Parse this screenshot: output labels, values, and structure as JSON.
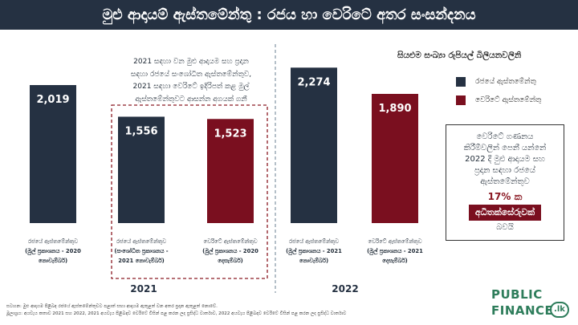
{
  "title": "මුළු ආදායම් ඇස්තමේන්තු : රජය හා වෙරිටේ අතර සංසන්දනය",
  "chart_data": {
    "type": "bar",
    "unit_label": "සියළුම සංඛ්‍යා රුපියල් බිලියනවලිනි",
    "ylim": [
      0,
      2700
    ],
    "legend": [
      {
        "label": "රජයේ ඇස්තමේන්තු",
        "color": "#253142"
      },
      {
        "label": "වෙරිටේ ඇස්තමේන්තු",
        "color": "#7a0f1f"
      }
    ],
    "groups": [
      {
        "year": "2021",
        "bars": [
          {
            "value": 2019,
            "display": "2,019",
            "color": "#253142",
            "caption": [
              "රජයේ ඇස්තමේන්තුව",
              "(මුල් ප්‍රකාශනය - 2020",
              "නොවැම්බර්)"
            ]
          },
          {
            "value": 1556,
            "display": "1,556",
            "color": "#253142",
            "caption": [
              "රජයේ ඇස්තමේන්තුව",
              "(සංශෝධිත ප්‍රකාශනය -",
              "2021 නොවැම්බර්)"
            ]
          },
          {
            "value": 1523,
            "display": "1,523",
            "color": "#7a0f1f",
            "caption": [
              "වෙරිටේ ඇස්තමේන්තුව",
              "(මුල් ප්‍රකාශනය - 2020",
              "දෙසැම්බර්)"
            ]
          }
        ]
      },
      {
        "year": "2022",
        "bars": [
          {
            "value": 2274,
            "display": "2,274",
            "color": "#253142",
            "caption": [
              "රජයේ ඇස්තමේන්තුව",
              "(මුල් ප්‍රකාශනය - 2021",
              "නොවැම්බර්)"
            ]
          },
          {
            "value": 1890,
            "display": "1,890",
            "color": "#7a0f1f",
            "caption": [
              "වෙරිටේ ඇස්තමේන්තුව",
              "(මුල් ප්‍රකාශනය - 2021",
              "දෙසැම්බර්)"
            ]
          }
        ]
      }
    ],
    "annotation": [
      "2021 සඳහා වන මුළු ආදායම සහ ප්‍රදාන",
      "සඳහා රජයේ සංශෝධිත ඇස්තමේන්තුව,",
      "2021 සඳහා වෙරිටේ ඉදිරිපත් කළ මුල්",
      "ඇස්තමේන්තුවට ආසන්න අගයක් ගනී"
    ]
  },
  "callout": {
    "lines": [
      "වෙරිටේ ගණනය",
      "කිරීම්වලින් පෙනී යන්නේ",
      "2022 දී මුළු ආදායම සහ",
      "ප්‍රදාන සඳහා රජයේ",
      "ඇස්තමේන්තුව"
    ],
    "percent": "17% ක",
    "increase": "අධිතක්සේරුවක්",
    "tail": "බවයි"
  },
  "footer": {
    "note": "සටහන: මුළු ආදායම පිළිබඳ රජයේ ඇස්තමේන්තුවට පළාත් සභා ආදායම ඇතුළත් වන අතර ප්‍රදාන ඇතුළත් නොවේ.",
    "source": "මූලාශ්‍රය: අයවැය කතාව 2021 සහ 2022, 2021 අයවැය පිළිබඳව වෙරිටේ විසින් පළ කරන ලද ප්‍රසිද්ධ වාර්තාව, 2022 අයවැය පිළිබඳව වෙරිටේ විසින් පළ කරන ලද ප්‍රසිද්ධ වාර්තාව"
  },
  "logo": {
    "line1": "PUBLIC",
    "line2": "FINANCE",
    "suffix": ".lk"
  }
}
